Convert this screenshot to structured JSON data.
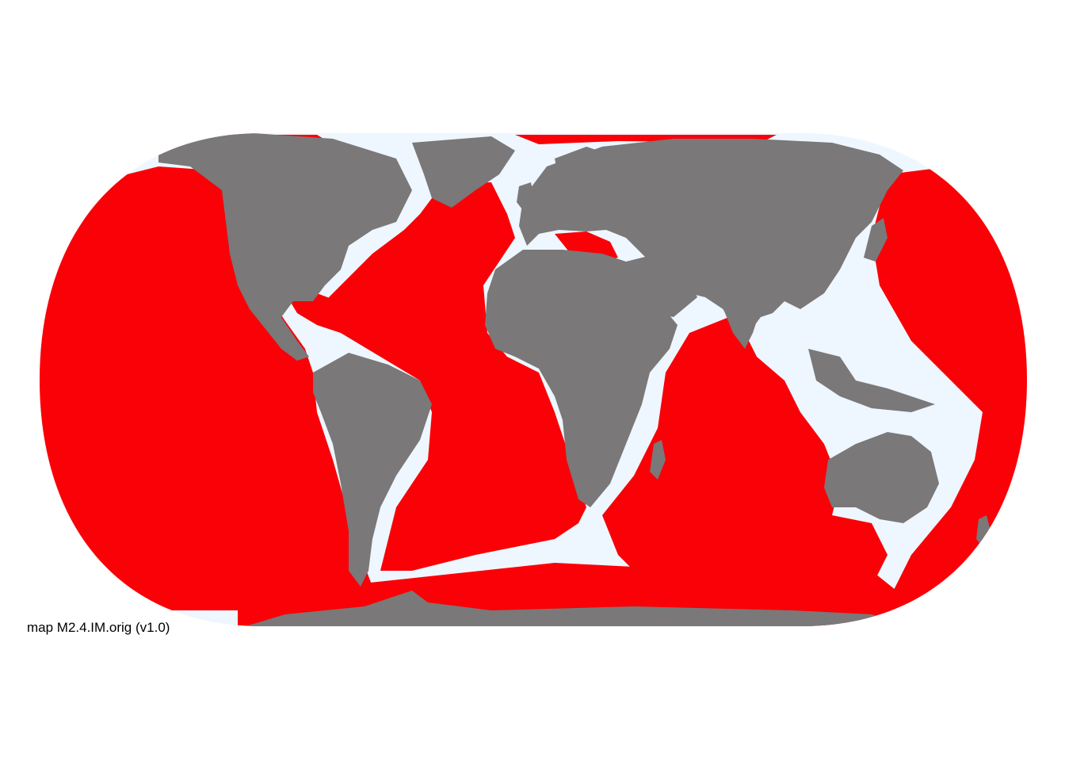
{
  "map": {
    "caption": "map M2.4.IM.orig (v1.0)",
    "projection": "Equal Earth",
    "colors": {
      "background": "#ffffff",
      "ocean_highlight": "#fa0007",
      "shelf_water": "#eef6ff",
      "land": "#7a7878",
      "caption_text": "#000000"
    }
  }
}
